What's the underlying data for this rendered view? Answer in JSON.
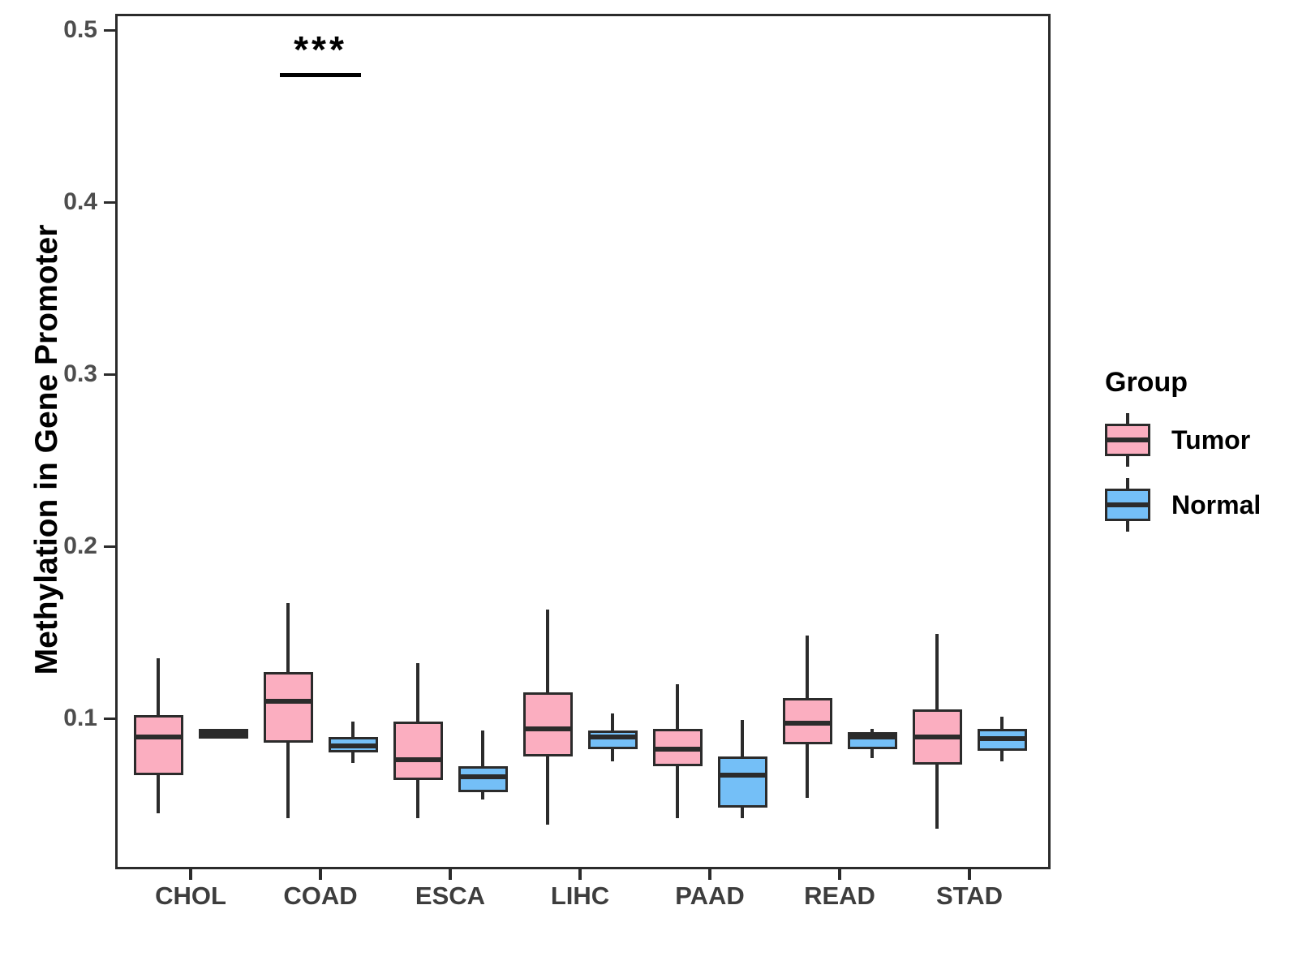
{
  "chart_data": {
    "type": "grouped_boxplot",
    "title": "",
    "xlabel": "",
    "ylabel": "Methylation in Gene Promoter",
    "categories": [
      "CHOL",
      "COAD",
      "ESCA",
      "LIHC",
      "PAAD",
      "READ",
      "STAD"
    ],
    "y_ticks": [
      {
        "value": 0.1,
        "label": "0.1"
      },
      {
        "value": 0.2,
        "label": "0.2"
      },
      {
        "value": 0.3,
        "label": "0.3"
      },
      {
        "value": 0.4,
        "label": "0.4"
      },
      {
        "value": 0.5,
        "label": "0.5"
      }
    ],
    "ylim": [
      0.012,
      0.51
    ],
    "grid": "off",
    "legend_position": "right",
    "series": [
      {
        "name": "Tumor",
        "color": "#FBAEC0",
        "boxes": [
          {
            "category": "CHOL",
            "min": 0.045,
            "q1": 0.067,
            "median": 0.089,
            "q3": 0.102,
            "max": 0.135
          },
          {
            "category": "COAD",
            "min": 0.042,
            "q1": 0.086,
            "median": 0.11,
            "q3": 0.127,
            "max": 0.167
          },
          {
            "category": "ESCA",
            "min": 0.042,
            "q1": 0.064,
            "median": 0.076,
            "q3": 0.098,
            "max": 0.132
          },
          {
            "category": "LIHC",
            "min": 0.038,
            "q1": 0.078,
            "median": 0.094,
            "q3": 0.115,
            "max": 0.163
          },
          {
            "category": "PAAD",
            "min": 0.042,
            "q1": 0.072,
            "median": 0.082,
            "q3": 0.094,
            "max": 0.12
          },
          {
            "category": "READ",
            "min": 0.054,
            "q1": 0.085,
            "median": 0.097,
            "q3": 0.112,
            "max": 0.148
          },
          {
            "category": "STAD",
            "min": 0.036,
            "q1": 0.073,
            "median": 0.089,
            "q3": 0.105,
            "max": 0.149
          }
        ]
      },
      {
        "name": "Normal",
        "color": "#74BFF7",
        "boxes": [
          {
            "category": "CHOL",
            "min": 0.088,
            "q1": 0.088,
            "median": 0.091,
            "q3": 0.094,
            "max": 0.094
          },
          {
            "category": "COAD",
            "min": 0.074,
            "q1": 0.08,
            "median": 0.084,
            "q3": 0.089,
            "max": 0.098
          },
          {
            "category": "ESCA",
            "min": 0.053,
            "q1": 0.057,
            "median": 0.066,
            "q3": 0.072,
            "max": 0.093
          },
          {
            "category": "LIHC",
            "min": 0.075,
            "q1": 0.082,
            "median": 0.089,
            "q3": 0.093,
            "max": 0.103
          },
          {
            "category": "PAAD",
            "min": 0.042,
            "q1": 0.048,
            "median": 0.067,
            "q3": 0.078,
            "max": 0.099
          },
          {
            "category": "READ",
            "min": 0.077,
            "q1": 0.082,
            "median": 0.089,
            "q3": 0.092,
            "max": 0.094
          },
          {
            "category": "STAD",
            "min": 0.075,
            "q1": 0.081,
            "median": 0.088,
            "q3": 0.094,
            "max": 0.101
          }
        ]
      }
    ],
    "annotation": {
      "text": "***",
      "category": "COAD"
    },
    "legend": {
      "title": "Group"
    }
  }
}
